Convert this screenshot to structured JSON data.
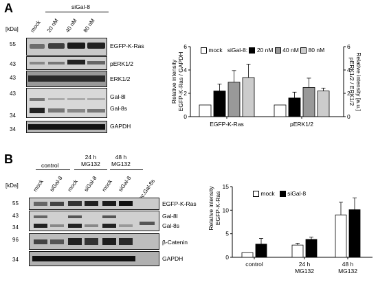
{
  "panelA": {
    "letter": "A",
    "sigal_header": "siGal-8",
    "lanes": [
      "mock",
      "20 nM",
      "40 nM",
      "80 nM"
    ],
    "kda_label": "[kDa]",
    "markers": [
      "55",
      "43",
      "43",
      "43",
      "34",
      "34"
    ],
    "bands": [
      "EGFP-K-Ras",
      "pERK1/2",
      "ERK1/2",
      "Gal-8l",
      "Gal-8s",
      "GAPDH"
    ],
    "legend": {
      "mock": "mock",
      "prefix": "siGal-8:",
      "s20": "20 nM",
      "s40": "40 nM",
      "s80": "80 nM"
    },
    "colors": {
      "mock": "#ffffff",
      "s20": "#000000",
      "s40": "#999999",
      "s80": "#cccccc"
    }
  },
  "panelB": {
    "letter": "B",
    "group_labels": [
      "control",
      "24 h\nMG132",
      "48 h\nMG132"
    ],
    "lanes": [
      "mock",
      "siGal-8",
      "mock",
      "siGal-8",
      "mock",
      "siGal-8",
      "rec.Gal-8s"
    ],
    "kda_label": "[kDa]",
    "markers": [
      "55",
      "43",
      "34",
      "96",
      "34"
    ],
    "bands": [
      "EGFP-K-Ras",
      "Gal-8l",
      "Gal-8s",
      "β-Catenin",
      "GAPDH"
    ],
    "legend": {
      "mock": "mock",
      "sigal": "siGal-8"
    }
  },
  "chart_data": [
    {
      "type": "bar",
      "title": "",
      "categories": [
        "EGFP-K-Ras",
        "pERK1/2"
      ],
      "series": [
        {
          "name": "mock",
          "values": [
            1.0,
            1.0
          ],
          "errors": [
            0,
            0
          ]
        },
        {
          "name": "20 nM",
          "values": [
            2.2,
            1.6
          ],
          "errors": [
            0.6,
            0.5
          ]
        },
        {
          "name": "40 nM",
          "values": [
            2.95,
            2.5
          ],
          "errors": [
            1.0,
            0.8
          ]
        },
        {
          "name": "80 nM",
          "values": [
            3.35,
            2.2
          ],
          "errors": [
            1.15,
            0.25
          ]
        }
      ],
      "ylabel": "Relative intensity\nEGFP-K-Ras / GAPDH",
      "ylabel_right": "Relative intensity [a.u.]\npERK1/2 / ERK1/2",
      "ylim": [
        0,
        6
      ],
      "yticks": [
        "0",
        "2",
        "4",
        "6"
      ],
      "grid": false,
      "legend": "top"
    },
    {
      "type": "bar",
      "title": "",
      "categories": [
        "control",
        "24 h\nMG132",
        "48 h\nMG132"
      ],
      "series": [
        {
          "name": "mock",
          "values": [
            1.0,
            2.6,
            9.0
          ],
          "errors": [
            0,
            0.4,
            2.7
          ]
        },
        {
          "name": "siGal-8",
          "values": [
            2.8,
            3.8,
            10.1
          ],
          "errors": [
            1.2,
            0.5,
            2.5
          ]
        }
      ],
      "ylabel": "Relative intensity\nEGFP-K-Ras",
      "ylim": [
        0,
        15
      ],
      "yticks": [
        "0",
        "5",
        "10",
        "15"
      ],
      "grid": false,
      "legend": "top-left"
    }
  ]
}
